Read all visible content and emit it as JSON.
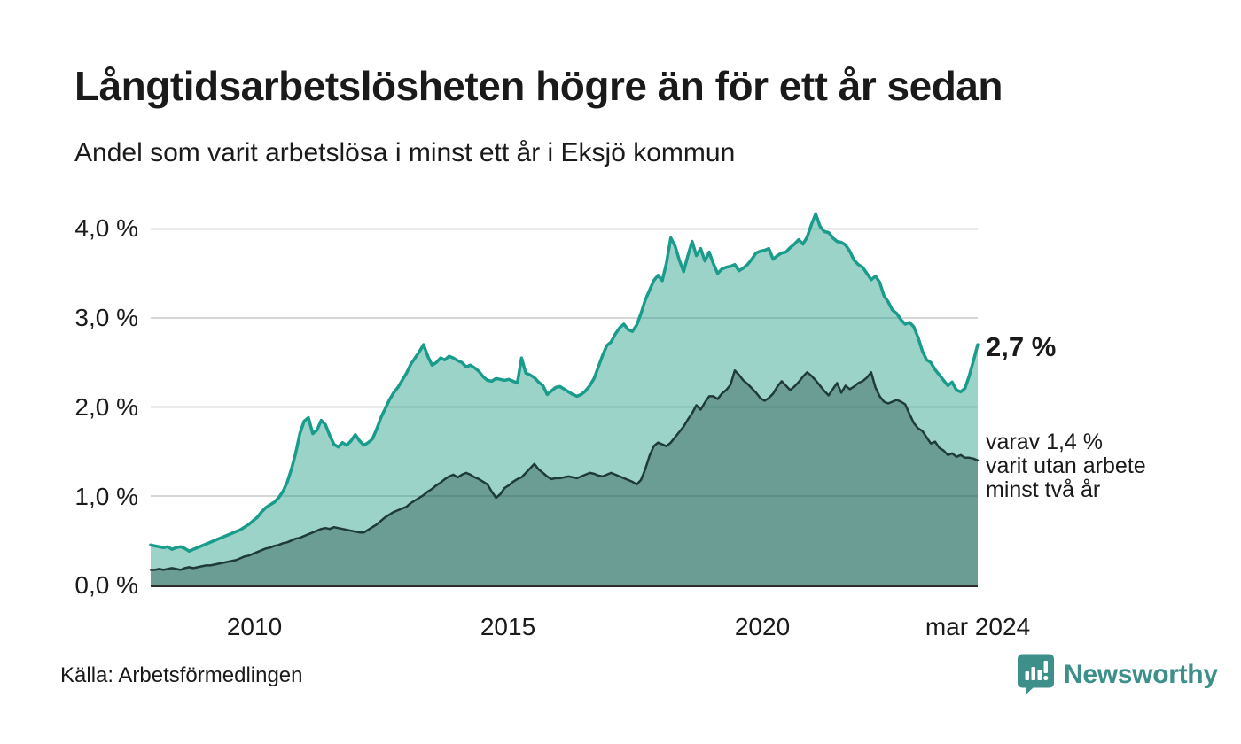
{
  "header": {
    "title": "Långtidsarbetslösheten högre än för ett år sedan",
    "subtitle": "Andel som varit arbetslösa i minst ett år i Eksjö kommun"
  },
  "annotations": {
    "latest_value": "2,7 %",
    "secondary": "varav 1,4 %\nvarit utan arbete\nminst två år"
  },
  "footer": {
    "source": "Källa: Arbetsförmedlingen",
    "logo_text": "Newsworthy",
    "logo_icon": "newsworthy-speech-bubble-bar-chart-icon"
  },
  "colors": {
    "accent_teal": "#1a9c8c",
    "light_fill_composite": "#9cd3c9",
    "dark_fill_composite": "#6d9d96",
    "dark_line": "#1f3b38",
    "grid": "#d5d7d7",
    "axis": "#2e2e2e",
    "text": "#1a1a1a",
    "logo_teal": "#3d8f8a"
  },
  "chart_data": {
    "type": "area",
    "title": "Långtidsarbetslösheten högre än för ett år sedan",
    "subtitle": "Andel som varit arbetslösa i minst ett år i Eksjö kommun",
    "x_start": "2008-01",
    "x_end": "2024-03",
    "frequency": "monthly",
    "ylim": [
      0,
      4.3
    ],
    "grid": "horizontal",
    "unit": "%",
    "y_ticks": [
      "0,0 %",
      "1,0 %",
      "2,0 %",
      "3,0 %",
      "4,0 %"
    ],
    "x_ticks": [
      {
        "label": "2010",
        "year": 2010
      },
      {
        "label": "2015",
        "year": 2015
      },
      {
        "label": "2020",
        "year": 2020
      },
      {
        "label": "mar 2024",
        "year": 2024.17
      }
    ],
    "latest_values": {
      "minst_ett_ar": 2.7,
      "minst_tva_ar": 1.4
    },
    "series": [
      {
        "name": "Arbetslösa minst ett år",
        "color": "#1a9c8c",
        "fill": "rgba(20,150,127,0.42)",
        "values": [
          0.45,
          0.44,
          0.43,
          0.42,
          0.43,
          0.4,
          0.42,
          0.43,
          0.41,
          0.38,
          0.4,
          0.42,
          0.44,
          0.46,
          0.48,
          0.5,
          0.52,
          0.54,
          0.56,
          0.58,
          0.6,
          0.62,
          0.65,
          0.68,
          0.72,
          0.76,
          0.82,
          0.87,
          0.9,
          0.93,
          0.98,
          1.05,
          1.15,
          1.3,
          1.48,
          1.7,
          1.84,
          1.88,
          1.7,
          1.74,
          1.85,
          1.8,
          1.68,
          1.58,
          1.55,
          1.6,
          1.57,
          1.62,
          1.69,
          1.62,
          1.57,
          1.6,
          1.64,
          1.75,
          1.88,
          1.98,
          2.08,
          2.16,
          2.22,
          2.3,
          2.38,
          2.48,
          2.55,
          2.62,
          2.7,
          2.57,
          2.47,
          2.5,
          2.55,
          2.53,
          2.57,
          2.55,
          2.52,
          2.5,
          2.45,
          2.47,
          2.44,
          2.4,
          2.34,
          2.3,
          2.29,
          2.32,
          2.31,
          2.3,
          2.31,
          2.29,
          2.27,
          2.55,
          2.38,
          2.36,
          2.33,
          2.28,
          2.24,
          2.14,
          2.18,
          2.22,
          2.23,
          2.2,
          2.17,
          2.14,
          2.12,
          2.14,
          2.18,
          2.24,
          2.32,
          2.45,
          2.58,
          2.69,
          2.73,
          2.82,
          2.89,
          2.93,
          2.87,
          2.85,
          2.92,
          3.05,
          3.2,
          3.31,
          3.42,
          3.48,
          3.42,
          3.62,
          3.9,
          3.81,
          3.65,
          3.52,
          3.7,
          3.86,
          3.7,
          3.78,
          3.64,
          3.74,
          3.61,
          3.5,
          3.55,
          3.57,
          3.58,
          3.6,
          3.53,
          3.56,
          3.6,
          3.66,
          3.73,
          3.75,
          3.76,
          3.78,
          3.66,
          3.7,
          3.73,
          3.74,
          3.79,
          3.83,
          3.88,
          3.83,
          3.91,
          4.05,
          4.17,
          4.03,
          3.97,
          3.96,
          3.9,
          3.86,
          3.85,
          3.82,
          3.75,
          3.65,
          3.6,
          3.57,
          3.5,
          3.43,
          3.47,
          3.4,
          3.25,
          3.18,
          3.09,
          3.05,
          2.98,
          2.93,
          2.95,
          2.9,
          2.78,
          2.63,
          2.53,
          2.5,
          2.42,
          2.36,
          2.3,
          2.24,
          2.28,
          2.19,
          2.17,
          2.21,
          2.35,
          2.52,
          2.7
        ]
      },
      {
        "name": "Arbetslösa minst två år",
        "color": "#1f3b38",
        "fill": "rgba(16,56,53,0.35)",
        "values": [
          0.17,
          0.17,
          0.18,
          0.17,
          0.18,
          0.19,
          0.18,
          0.17,
          0.19,
          0.2,
          0.19,
          0.2,
          0.21,
          0.22,
          0.22,
          0.23,
          0.24,
          0.25,
          0.26,
          0.27,
          0.28,
          0.3,
          0.32,
          0.33,
          0.35,
          0.37,
          0.39,
          0.41,
          0.42,
          0.44,
          0.45,
          0.47,
          0.48,
          0.5,
          0.52,
          0.53,
          0.55,
          0.57,
          0.59,
          0.61,
          0.63,
          0.64,
          0.63,
          0.65,
          0.64,
          0.63,
          0.62,
          0.61,
          0.6,
          0.59,
          0.59,
          0.62,
          0.65,
          0.68,
          0.72,
          0.76,
          0.79,
          0.82,
          0.84,
          0.86,
          0.88,
          0.92,
          0.95,
          0.98,
          1.01,
          1.05,
          1.08,
          1.12,
          1.15,
          1.19,
          1.22,
          1.24,
          1.21,
          1.24,
          1.26,
          1.24,
          1.21,
          1.19,
          1.16,
          1.13,
          1.05,
          0.98,
          1.02,
          1.09,
          1.12,
          1.16,
          1.19,
          1.21,
          1.26,
          1.31,
          1.36,
          1.3,
          1.26,
          1.22,
          1.19,
          1.2,
          1.2,
          1.21,
          1.22,
          1.21,
          1.2,
          1.22,
          1.24,
          1.26,
          1.25,
          1.23,
          1.22,
          1.24,
          1.26,
          1.24,
          1.22,
          1.2,
          1.18,
          1.16,
          1.13,
          1.18,
          1.3,
          1.45,
          1.56,
          1.6,
          1.58,
          1.56,
          1.6,
          1.66,
          1.72,
          1.78,
          1.86,
          1.93,
          2.02,
          1.97,
          2.05,
          2.12,
          2.12,
          2.09,
          2.15,
          2.19,
          2.25,
          2.41,
          2.36,
          2.3,
          2.26,
          2.21,
          2.16,
          2.1,
          2.07,
          2.1,
          2.15,
          2.23,
          2.29,
          2.24,
          2.19,
          2.23,
          2.28,
          2.34,
          2.39,
          2.35,
          2.3,
          2.24,
          2.18,
          2.13,
          2.2,
          2.27,
          2.16,
          2.24,
          2.2,
          2.23,
          2.27,
          2.29,
          2.33,
          2.39,
          2.22,
          2.12,
          2.06,
          2.04,
          2.06,
          2.08,
          2.06,
          2.03,
          1.92,
          1.82,
          1.76,
          1.73,
          1.66,
          1.59,
          1.61,
          1.54,
          1.51,
          1.46,
          1.48,
          1.44,
          1.46,
          1.43,
          1.43,
          1.42,
          1.4
        ]
      }
    ]
  }
}
